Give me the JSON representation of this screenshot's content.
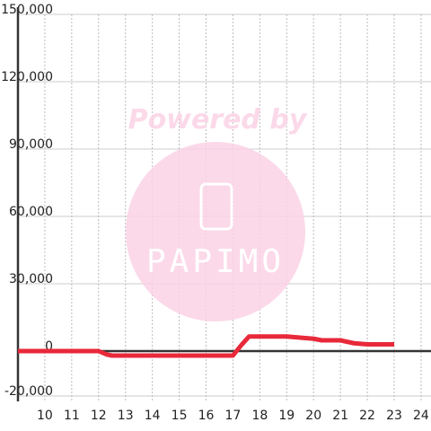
{
  "chart_data": {
    "type": "line",
    "x": [
      9,
      12,
      12.3,
      12.5,
      17,
      17.3,
      17.6,
      19,
      19.5,
      20,
      20.3,
      21,
      21.5,
      22,
      23
    ],
    "series": [
      {
        "color": "#e8293a",
        "values": [
          0,
          0,
          -1500,
          -2000,
          -2000,
          2500,
          6500,
          6500,
          6000,
          5500,
          4800,
          4800,
          3500,
          3000,
          3000
        ]
      }
    ],
    "xlim": [
      9,
      24.37
    ],
    "xticks": [
      10,
      11,
      12,
      13,
      14,
      15,
      16,
      17,
      18,
      19,
      20,
      21,
      22,
      23,
      24
    ],
    "ylim": [
      -20000,
      150000
    ],
    "yticks": [
      {
        "value": -20000,
        "label": "-20,000"
      },
      0,
      {
        "value": 30000,
        "label": "30,000"
      },
      {
        "value": 60000,
        "label": "60,000"
      },
      {
        "value": 90000,
        "label": "90,000"
      },
      {
        "value": 120000,
        "label": "120,000"
      },
      {
        "value": 150000,
        "label": "150,000"
      }
    ],
    "grid": true
  },
  "watermark": {
    "text": "Powered by",
    "logo": "PAPIMO"
  }
}
